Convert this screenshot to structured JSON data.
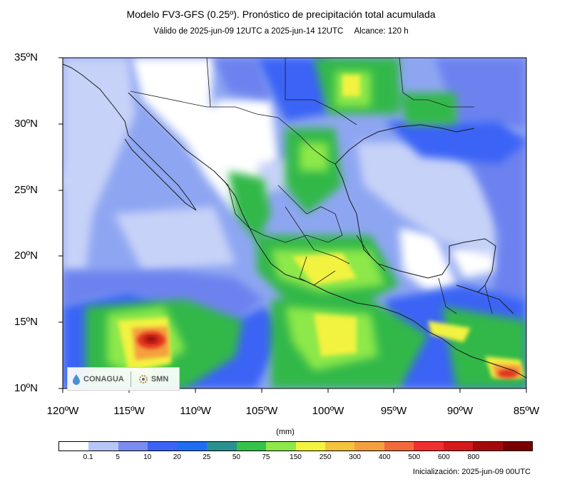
{
  "header": {
    "title": "Modelo FV3-GFS (0.25º). Pronóstico de precipitación total acumulada",
    "validity": "Válido de 2025-jun-09 12UTC a 2025-jun-14 12UTC",
    "range": "Alcance: 120 h"
  },
  "map": {
    "lat_labels": [
      "35ºN",
      "30ºN",
      "25ºN",
      "20ºN",
      "15ºN",
      "10ºN"
    ],
    "lon_labels": [
      "120ºW",
      "115ºW",
      "110ºW",
      "105ºW",
      "100ºW",
      "95ºW",
      "90ºW",
      "85ºW"
    ],
    "extent": {
      "lon_min": -120,
      "lon_max": -85,
      "lat_min": 10,
      "lat_max": 35
    },
    "ocean_color": "#8ea6f2",
    "land_color": "#ffffff"
  },
  "colorbar": {
    "units": "(mm)",
    "levels": [
      "0.1",
      "5",
      "10",
      "20",
      "25",
      "50",
      "75",
      "150",
      "250",
      "300",
      "400",
      "500",
      "600",
      "800"
    ],
    "colors": [
      "#ffffff",
      "#b8c6f7",
      "#7b8cf0",
      "#3b63f5",
      "#1e6ef2",
      "#2a9090",
      "#34c24a",
      "#8de84a",
      "#f2f240",
      "#f4c23c",
      "#f5a040",
      "#f26a3c",
      "#f03030",
      "#d41a1a",
      "#a40a0a",
      "#7a0000"
    ]
  },
  "logos": {
    "conagua": "CONAGUA",
    "smn": "SMN",
    "conagua_icon": "water-drop-icon",
    "smn_icon": "gear-icon"
  },
  "footer": {
    "init": "Inicialización: 2025-jun-09 00UTC"
  }
}
